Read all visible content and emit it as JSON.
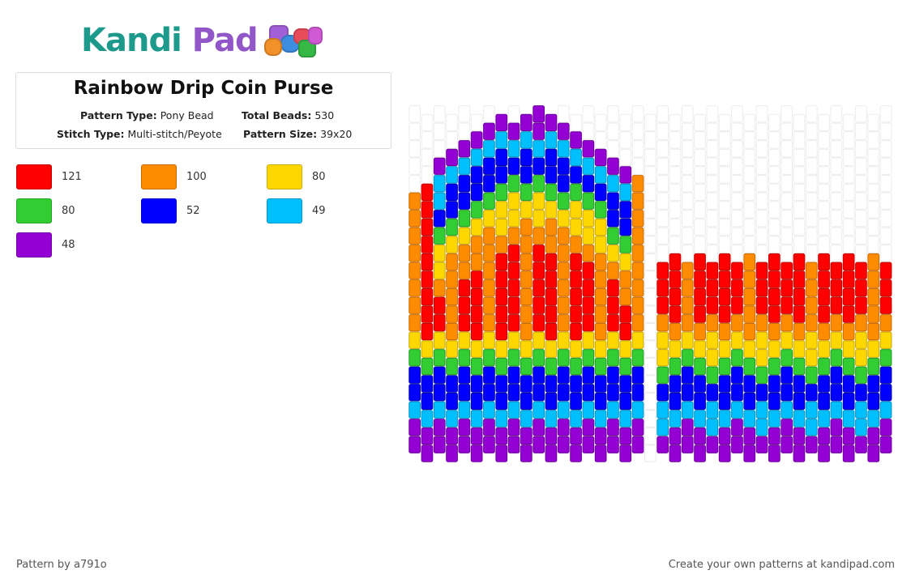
{
  "logo": {
    "text_part1": "Kandi",
    "text_part2": "Pad"
  },
  "pattern": {
    "title": "Rainbow Drip Coin Purse",
    "type_label": "Pattern Type:",
    "type_value": "Pony Bead",
    "total_label": "Total Beads:",
    "total_value": "530",
    "stitch_label": "Stitch Type:",
    "stitch_value": "Multi-stitch/Peyote",
    "size_label": "Pattern Size:",
    "size_value": "39x20"
  },
  "legend": [
    {
      "color": "#ff0000",
      "count": "121"
    },
    {
      "color": "#ff8c00",
      "count": "100"
    },
    {
      "color": "#ffd700",
      "count": "80"
    },
    {
      "color": "#32cd32",
      "count": "80"
    },
    {
      "color": "#0000ff",
      "count": "52"
    },
    {
      "color": "#00bfff",
      "count": "49"
    },
    {
      "color": "#9400d3",
      "count": "48"
    }
  ],
  "footer": {
    "author": "Pattern by a791o",
    "promo": "Create your own patterns at kandipad.com"
  }
}
